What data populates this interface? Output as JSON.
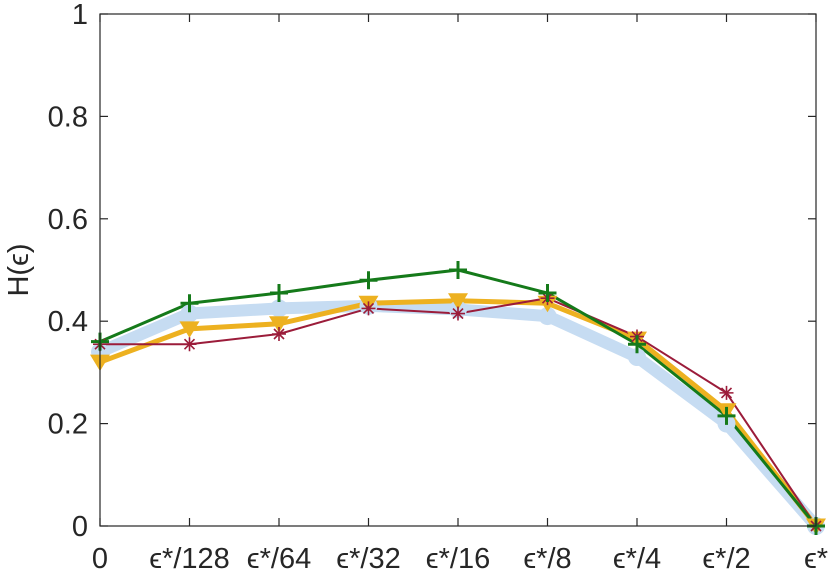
{
  "chart_data": {
    "type": "line",
    "ylabel": "H(ϵ)",
    "ylim": [
      0,
      1
    ],
    "yticks": [
      "0",
      "0.2",
      "0.4",
      "0.6",
      "0.8",
      "1"
    ],
    "categories": [
      "0",
      "ϵ*/128",
      "ϵ*/64",
      "ϵ*/32",
      "ϵ*/16",
      "ϵ*/8",
      "ϵ*/4",
      "ϵ*/2",
      "ϵ*"
    ],
    "grid": false,
    "box": true,
    "series": [
      {
        "color": "#c6dcf2",
        "marker": "circle",
        "values": [
          0.34,
          0.415,
          0.425,
          0.43,
          0.423,
          0.41,
          0.33,
          0.2,
          0.0
        ]
      },
      {
        "color": "#edb120",
        "marker": "triangle-down",
        "values": [
          0.32,
          0.385,
          0.395,
          0.435,
          0.44,
          0.435,
          0.365,
          0.225,
          0.0
        ]
      },
      {
        "color": "#9b1c3a",
        "marker": "asterisk",
        "values": [
          0.355,
          0.355,
          0.375,
          0.425,
          0.415,
          0.445,
          0.37,
          0.26,
          0.0
        ]
      },
      {
        "color": "#157a1a",
        "marker": "plus",
        "values": [
          0.36,
          0.435,
          0.455,
          0.48,
          0.5,
          0.455,
          0.355,
          0.215,
          0.0
        ]
      }
    ]
  }
}
